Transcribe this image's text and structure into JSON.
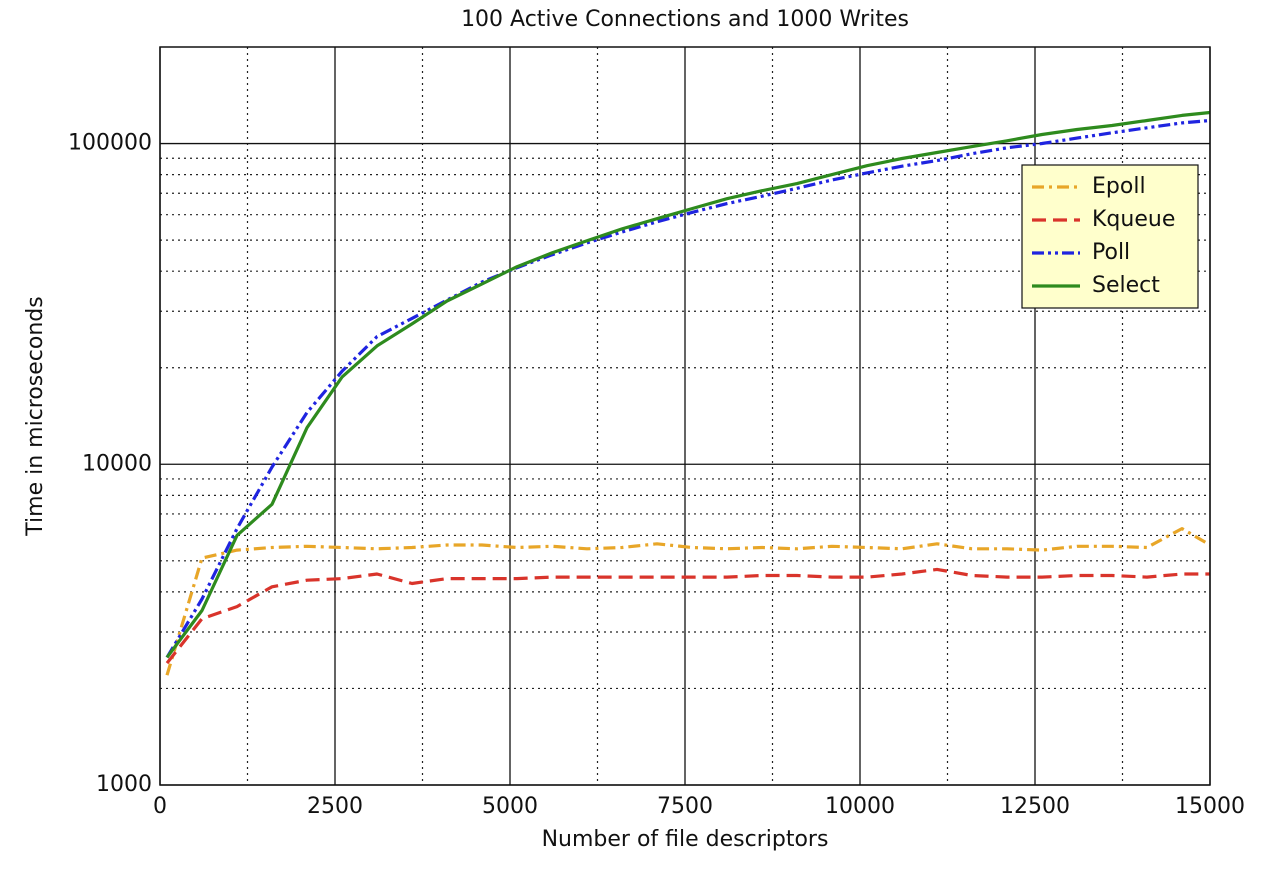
{
  "chart_data": {
    "type": "line",
    "title": "100 Active Connections and 1000 Writes",
    "xlabel": "Number of file descriptors",
    "ylabel": "Time in microseconds",
    "x": [
      100,
      600,
      1100,
      1600,
      2100,
      2600,
      3100,
      3600,
      4100,
      4600,
      5100,
      5600,
      6100,
      6600,
      7100,
      7600,
      8100,
      8600,
      9100,
      9600,
      10100,
      10600,
      11100,
      11600,
      12100,
      12600,
      13100,
      13600,
      14100,
      14600,
      15000
    ],
    "series": [
      {
        "name": "Epoll",
        "color": "#e8a628",
        "linestyle": "dashdot",
        "values": [
          2200,
          5100,
          5400,
          5500,
          5550,
          5500,
          5450,
          5500,
          5600,
          5600,
          5500,
          5550,
          5450,
          5500,
          5650,
          5500,
          5450,
          5500,
          5450,
          5550,
          5500,
          5450,
          5650,
          5450,
          5450,
          5400,
          5550,
          5550,
          5500,
          6300,
          5600
        ]
      },
      {
        "name": "Kqueue",
        "color": "#d9342b",
        "linestyle": "dashed",
        "values": [
          2400,
          3300,
          3600,
          4150,
          4350,
          4400,
          4550,
          4250,
          4400,
          4400,
          4400,
          4450,
          4450,
          4450,
          4450,
          4450,
          4450,
          4500,
          4500,
          4450,
          4450,
          4550,
          4700,
          4500,
          4450,
          4450,
          4500,
          4500,
          4450,
          4550,
          4550
        ]
      },
      {
        "name": "Poll",
        "color": "#1f24e0",
        "linestyle": "dashdotdot",
        "values": [
          2500,
          3800,
          6300,
          9800,
          14500,
          19500,
          25000,
          28500,
          32500,
          37000,
          41000,
          45000,
          49000,
          53000,
          57000,
          61000,
          65000,
          68500,
          72500,
          77000,
          81000,
          85000,
          88500,
          93000,
          97000,
          100000,
          104000,
          108000,
          112000,
          116000,
          118000
        ]
      },
      {
        "name": "Select",
        "color": "#2e8b1e",
        "linestyle": "solid",
        "values": [
          2500,
          3500,
          6000,
          7500,
          13000,
          18700,
          23400,
          27400,
          32300,
          36500,
          41300,
          45600,
          49800,
          54200,
          58300,
          62700,
          67300,
          71300,
          75000,
          80000,
          85300,
          89800,
          93800,
          97800,
          102000,
          106700,
          110600,
          113800,
          118000,
          122400,
          125000
        ]
      }
    ],
    "xlim": [
      0,
      15000
    ],
    "xticks": [
      0,
      2500,
      5000,
      7500,
      10000,
      12500,
      15000
    ],
    "ylim": [
      1000,
      200000
    ],
    "yticks": [
      1000,
      10000,
      100000
    ],
    "yscale": "log",
    "grid": true,
    "legend": "upper right"
  }
}
